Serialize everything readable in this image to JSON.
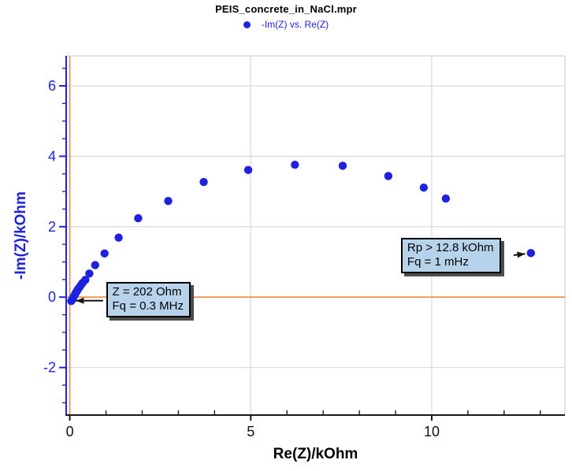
{
  "header": {
    "title": "PEIS_concrete_in_NaCl.mpr",
    "legend": {
      "label": "-Im(Z) vs. Re(Z)",
      "marker": "circle-icon",
      "marker_color": "#1e22e0"
    }
  },
  "colors": {
    "series_blue": "#1e22e0",
    "axis_orange": "#ee8a3f",
    "grid_gray": "#d9d9d9",
    "axis_black": "#1a1a1a",
    "annotation_fill": "#b7d3ec",
    "annotation_shadow": "#4d4d4d"
  },
  "chart_data": {
    "type": "scatter",
    "title": "PEIS_concrete_in_NaCl.mpr",
    "xlabel": "Re(Z)/kOhm",
    "ylabel": "-Im(Z)/kOhm",
    "xlim": [
      -0.1,
      13.68
    ],
    "ylim": [
      -3.35,
      6.85
    ],
    "x_major_ticks": [
      0,
      5,
      10
    ],
    "x_minor_step": 1,
    "y_major_ticks": [
      -2,
      0,
      2,
      4,
      6
    ],
    "y_minor_step": 0.5,
    "grid": true,
    "legend_position": "top-center",
    "zero_lines": {
      "x": 0,
      "y": 0,
      "color": "#ee8a3f"
    },
    "series": [
      {
        "name": "-Im(Z) vs. Re(Z)",
        "marker": "circle",
        "marker_radius": 5.2,
        "color": "#1e22e0",
        "points": [
          [
            0.04,
            -0.11
          ],
          [
            0.07,
            -0.07
          ],
          [
            0.09,
            -0.03
          ],
          [
            0.11,
            0.01
          ],
          [
            0.13,
            0.05
          ],
          [
            0.15,
            0.09
          ],
          [
            0.17,
            0.13
          ],
          [
            0.2,
            0.17
          ],
          [
            0.22,
            0.22
          ],
          [
            0.26,
            0.27
          ],
          [
            0.3,
            0.33
          ],
          [
            0.35,
            0.4
          ],
          [
            0.43,
            0.49
          ],
          [
            0.54,
            0.67
          ],
          [
            0.7,
            0.91
          ],
          [
            0.96,
            1.24
          ],
          [
            1.35,
            1.69
          ],
          [
            1.89,
            2.24
          ],
          [
            2.72,
            2.73
          ],
          [
            3.7,
            3.27
          ],
          [
            4.93,
            3.61
          ],
          [
            6.22,
            3.76
          ],
          [
            7.54,
            3.73
          ],
          [
            8.8,
            3.44
          ],
          [
            9.78,
            3.11
          ],
          [
            10.39,
            2.8
          ],
          [
            12.74,
            1.25
          ]
        ]
      }
    ],
    "annotations": [
      {
        "id": "high-frequency-marker",
        "lines": [
          "Z = 202 Ohm",
          "Fq = 0.3 MHz"
        ],
        "box_pos": [
          1.0,
          0.44
        ],
        "arrow": {
          "from": [
            0.92,
            -0.1
          ],
          "to": [
            0.17,
            -0.1
          ]
        }
      },
      {
        "id": "polarization-resistance-marker",
        "lines": [
          "Rp > 12.8 kOhm",
          "Fq = 1 mHz"
        ],
        "box_pos": [
          9.15,
          1.69
        ],
        "arrow": {
          "from": [
            12.26,
            1.19
          ],
          "to": [
            12.58,
            1.23
          ]
        }
      }
    ]
  }
}
